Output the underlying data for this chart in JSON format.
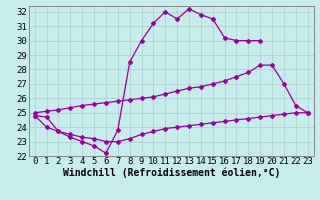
{
  "xlabel": "Windchill (Refroidissement éolien,°C)",
  "bg_color": "#c8ecec",
  "line_color": "#990099",
  "grid_color": "#aacccc",
  "ylim": [
    22,
    32.4
  ],
  "yticks": [
    22,
    23,
    24,
    25,
    26,
    27,
    28,
    29,
    30,
    31,
    32
  ],
  "xticks": [
    0,
    1,
    2,
    3,
    4,
    5,
    6,
    7,
    8,
    9,
    10,
    11,
    12,
    13,
    14,
    15,
    16,
    17,
    18,
    19,
    20,
    21,
    22,
    23
  ],
  "line1_x": [
    0,
    1,
    2,
    3,
    4,
    5,
    6,
    7,
    8,
    9,
    10,
    11,
    12,
    13,
    14,
    15,
    16,
    17,
    18,
    19
  ],
  "line1_y": [
    24.8,
    24.7,
    23.7,
    23.3,
    23.0,
    22.7,
    22.2,
    23.8,
    28.5,
    30.0,
    31.2,
    32.0,
    31.5,
    32.2,
    31.8,
    31.5,
    30.2,
    30.0,
    30.0,
    30.0
  ],
  "line2_x": [
    0,
    1,
    2,
    3,
    4,
    5,
    6,
    7,
    8,
    9,
    10,
    11,
    12,
    13,
    14,
    15,
    16,
    17,
    18,
    19,
    20,
    21,
    22,
    23
  ],
  "line2_y": [
    25.0,
    25.1,
    25.2,
    25.35,
    25.5,
    25.6,
    25.7,
    25.8,
    25.9,
    26.0,
    26.1,
    26.3,
    26.5,
    26.7,
    26.8,
    27.0,
    27.2,
    27.5,
    27.8,
    28.3,
    28.3,
    27.0,
    25.5,
    25.0
  ],
  "line3_x": [
    0,
    1,
    2,
    3,
    4,
    5,
    6,
    7,
    8,
    9,
    10,
    11,
    12,
    13,
    14,
    15,
    16,
    17,
    18,
    19,
    20,
    21,
    22,
    23
  ],
  "line3_y": [
    24.8,
    24.0,
    23.7,
    23.5,
    23.3,
    23.2,
    23.0,
    23.0,
    23.2,
    23.5,
    23.7,
    23.9,
    24.0,
    24.1,
    24.2,
    24.3,
    24.4,
    24.5,
    24.6,
    24.7,
    24.8,
    24.9,
    25.0,
    25.0
  ],
  "xlabel_fontsize": 7,
  "tick_fontsize": 6.5
}
